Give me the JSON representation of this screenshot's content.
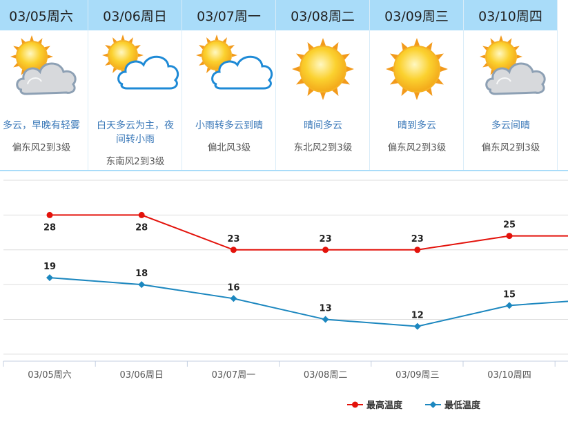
{
  "forecast": [
    {
      "date": "03/05周六",
      "icon": "sun-cloud-icon",
      "desc": "多云，早晚有轻雾",
      "wind": "偏东风2到3级"
    },
    {
      "date": "03/06周日",
      "icon": "sun-behind-cloud-icon",
      "desc": "白天多云为主，夜间转小雨",
      "wind": "东南风2到3级"
    },
    {
      "date": "03/07周一",
      "icon": "sun-behind-cloud-icon",
      "desc": "小雨转多云到晴",
      "wind": "偏北风3级"
    },
    {
      "date": "03/08周二",
      "icon": "sun-icon",
      "desc": "晴间多云",
      "wind": "东北风2到3级"
    },
    {
      "date": "03/09周三",
      "icon": "sun-icon",
      "desc": "晴到多云",
      "wind": "偏东风2到3级"
    },
    {
      "date": "03/10周四",
      "icon": "sun-cloud-icon",
      "desc": "多云间晴",
      "wind": "偏东风2到3级"
    }
  ],
  "colors": {
    "high": "#e3120b",
    "low": "#1c87bf",
    "header": "#a9dcf9"
  },
  "chart_data": {
    "type": "line",
    "categories": [
      "03/05周六",
      "03/06周日",
      "03/07周一",
      "03/08周二",
      "03/09周三",
      "03/10周四"
    ],
    "series": [
      {
        "name": "最高温度",
        "values": [
          28,
          28,
          23,
          23,
          23,
          25
        ]
      },
      {
        "name": "最低温度",
        "values": [
          19,
          18,
          16,
          13,
          12,
          15
        ]
      }
    ],
    "ylim": [
      7,
      33
    ],
    "grid": true,
    "legend": "bottom-right"
  }
}
